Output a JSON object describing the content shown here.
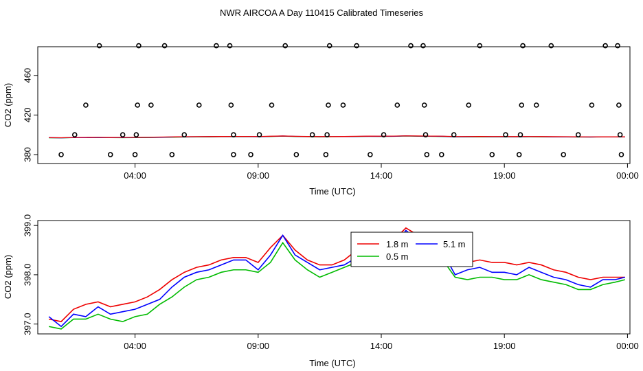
{
  "page": {
    "title": "NWR AIRCOA A  Day 110415  Calibrated Timeseries"
  },
  "colors": {
    "background": "#ffffff",
    "axis": "#000000",
    "series_1_8m": "#ee0000",
    "series_5_1m": "#0000ff",
    "series_0_5m": "#00bb00",
    "points": "#000000"
  },
  "chart_data": [
    {
      "type": "scatter+line",
      "name": "top-panel",
      "xlabel": "Time (UTC)",
      "ylabel": "CO2 (ppm)",
      "xlim": [
        0.05,
        24.1
      ],
      "ylim": [
        371,
        489
      ],
      "xticks": [
        4,
        9,
        14,
        19,
        24
      ],
      "xtick_labels": [
        "04:00",
        "09:00",
        "14:00",
        "19:00",
        "00:00"
      ],
      "yticks": [
        380,
        420,
        460
      ],
      "ytick_labels": [
        "380",
        "420",
        "460"
      ],
      "points": [
        [
          1.0,
          380
        ],
        [
          1.55,
          400
        ],
        [
          2.0,
          430
        ],
        [
          2.55,
          490
        ],
        [
          3.0,
          380
        ],
        [
          3.5,
          400
        ],
        [
          4.0,
          380
        ],
        [
          4.05,
          400
        ],
        [
          4.1,
          430
        ],
        [
          4.15,
          490
        ],
        [
          4.65,
          430
        ],
        [
          5.2,
          490
        ],
        [
          5.5,
          380
        ],
        [
          6.0,
          400
        ],
        [
          6.6,
          430
        ],
        [
          7.3,
          490
        ],
        [
          7.85,
          490
        ],
        [
          7.9,
          430
        ],
        [
          8.0,
          400
        ],
        [
          8.0,
          380
        ],
        [
          8.7,
          380
        ],
        [
          9.05,
          400
        ],
        [
          9.55,
          430
        ],
        [
          10.1,
          490
        ],
        [
          10.55,
          380
        ],
        [
          11.2,
          400
        ],
        [
          11.75,
          380
        ],
        [
          11.8,
          400
        ],
        [
          11.85,
          430
        ],
        [
          11.9,
          490
        ],
        [
          12.45,
          430
        ],
        [
          13.0,
          490
        ],
        [
          13.55,
          380
        ],
        [
          14.1,
          400
        ],
        [
          14.65,
          430
        ],
        [
          15.2,
          490
        ],
        [
          15.7,
          490
        ],
        [
          15.75,
          430
        ],
        [
          15.8,
          400
        ],
        [
          15.85,
          380
        ],
        [
          16.45,
          380
        ],
        [
          16.95,
          400
        ],
        [
          17.55,
          430
        ],
        [
          18.0,
          490
        ],
        [
          18.5,
          380
        ],
        [
          19.05,
          400
        ],
        [
          19.6,
          380
        ],
        [
          19.65,
          400
        ],
        [
          19.7,
          430
        ],
        [
          19.75,
          490
        ],
        [
          20.3,
          430
        ],
        [
          20.9,
          490
        ],
        [
          21.4,
          380
        ],
        [
          22.0,
          400
        ],
        [
          22.55,
          430
        ],
        [
          23.1,
          490
        ],
        [
          23.6,
          490
        ],
        [
          23.65,
          430
        ],
        [
          23.7,
          400
        ],
        [
          23.75,
          380
        ]
      ],
      "series": [
        {
          "name": "1.8 m",
          "color": "#ee0000"
        },
        {
          "name": "0.5 m",
          "color": "#00bb00"
        },
        {
          "name": "5.1 m",
          "color": "#0000ff"
        }
      ]
    },
    {
      "type": "line",
      "name": "bottom-panel",
      "xlabel": "Time (UTC)",
      "ylabel": "CO2 (ppm)",
      "xlim": [
        0.05,
        24.1
      ],
      "ylim": [
        396.8,
        399.1
      ],
      "xticks": [
        4,
        9,
        14,
        19,
        24
      ],
      "xtick_labels": [
        "04:00",
        "09:00",
        "14:00",
        "19:00",
        "00:00"
      ],
      "yticks": [
        397.0,
        398.0,
        399.0
      ],
      "ytick_labels": [
        "397.0",
        "398.0",
        "399.0"
      ],
      "x": [
        0.5,
        1.0,
        1.5,
        2.0,
        2.5,
        3.0,
        3.5,
        4.0,
        4.5,
        5.0,
        5.5,
        6.0,
        6.5,
        7.0,
        7.5,
        8.0,
        8.5,
        9.0,
        9.5,
        10.0,
        10.5,
        11.0,
        11.5,
        12.0,
        12.5,
        13.0,
        13.5,
        14.0,
        14.5,
        15.0,
        15.5,
        16.0,
        16.5,
        17.0,
        17.5,
        18.0,
        18.5,
        19.0,
        19.5,
        20.0,
        20.5,
        21.0,
        21.5,
        22.0,
        22.5,
        23.0,
        23.5,
        23.9
      ],
      "series": [
        {
          "name": "1.8 m",
          "color": "#ee0000",
          "values": [
            397.1,
            397.05,
            397.3,
            397.4,
            397.45,
            397.35,
            397.4,
            397.45,
            397.55,
            397.7,
            397.9,
            398.05,
            398.15,
            398.2,
            398.3,
            398.35,
            398.35,
            398.25,
            398.55,
            398.8,
            398.5,
            398.3,
            398.2,
            398.2,
            398.3,
            398.5,
            398.65,
            398.6,
            398.7,
            398.95,
            398.8,
            398.7,
            398.6,
            398.25,
            398.25,
            398.3,
            398.25,
            398.25,
            398.2,
            398.25,
            398.2,
            398.1,
            398.05,
            397.95,
            397.9,
            397.95,
            397.95,
            397.95
          ]
        },
        {
          "name": "5.1 m",
          "color": "#0000ff",
          "values": [
            397.15,
            396.95,
            397.2,
            397.15,
            397.35,
            397.2,
            397.25,
            397.3,
            397.4,
            397.5,
            397.75,
            397.95,
            398.05,
            398.1,
            398.2,
            398.3,
            398.3,
            398.1,
            398.4,
            398.8,
            398.4,
            398.25,
            398.1,
            398.15,
            398.2,
            398.35,
            398.55,
            398.45,
            398.55,
            398.9,
            398.7,
            398.6,
            398.45,
            398.0,
            398.1,
            398.15,
            398.05,
            398.05,
            398.0,
            398.15,
            398.05,
            397.95,
            397.9,
            397.8,
            397.75,
            397.9,
            397.9,
            397.95
          ]
        },
        {
          "name": "0.5 m",
          "color": "#00bb00",
          "values": [
            396.95,
            396.9,
            397.1,
            397.1,
            397.2,
            397.1,
            397.05,
            397.15,
            397.2,
            397.4,
            397.55,
            397.75,
            397.9,
            397.95,
            398.05,
            398.1,
            398.1,
            398.05,
            398.25,
            398.65,
            398.3,
            398.1,
            397.95,
            398.05,
            398.15,
            398.25,
            398.4,
            398.35,
            398.45,
            398.8,
            398.5,
            398.4,
            398.3,
            397.95,
            397.9,
            397.95,
            397.95,
            397.9,
            397.9,
            398.0,
            397.9,
            397.85,
            397.8,
            397.7,
            397.7,
            397.8,
            397.85,
            397.9
          ]
        }
      ],
      "legend": {
        "position": "top-center",
        "entries": [
          "1.8 m",
          "5.1 m",
          "0.5 m"
        ]
      }
    }
  ]
}
